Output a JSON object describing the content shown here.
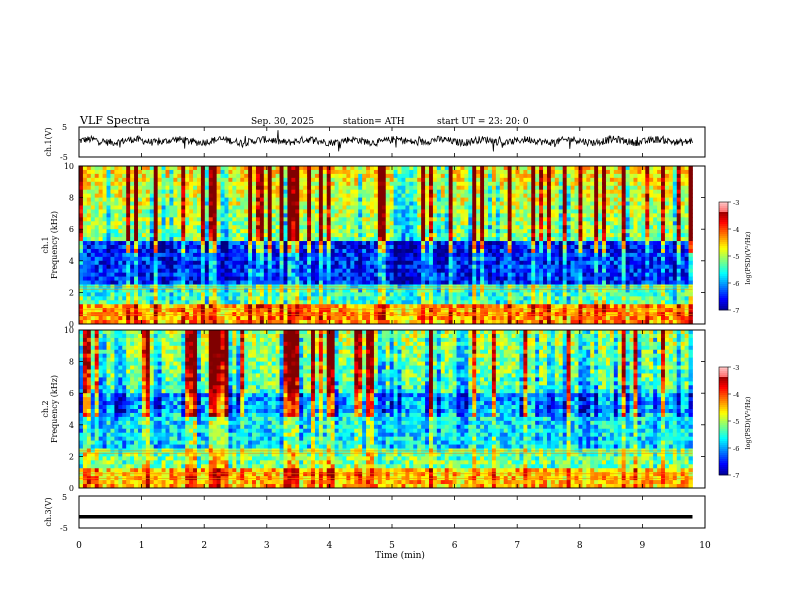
{
  "header": {
    "title": "VLF  Spectra",
    "date": "Sep. 30, 2025",
    "station": "station= ATH",
    "start": "start  UT  =    23: 20: 0"
  },
  "chart_data": [
    {
      "type": "line",
      "name": "ch1-waveform",
      "ylabel": "ch.1(V)",
      "ylim": [
        -5,
        5
      ],
      "yticks": [
        "5",
        "-5"
      ],
      "x_range_min": [
        0,
        9.8
      ],
      "description_note": "noisy waveform near 0 V"
    },
    {
      "type": "heatmap",
      "name": "ch1-spectrogram",
      "ylabel_channel": "ch.1",
      "ylabel": "Frequency  (kHz)",
      "ylim": [
        0,
        10
      ],
      "yticks": [
        "0",
        "2",
        "4",
        "6",
        "8",
        "10"
      ],
      "colorbar": {
        "label": "log(PSD)(V²/Hz)",
        "range": [
          -7,
          -3
        ],
        "ticks": [
          "-3",
          "-4",
          "-5",
          "-6",
          "-7"
        ]
      }
    },
    {
      "type": "heatmap",
      "name": "ch2-spectrogram",
      "ylabel_channel": "ch.2",
      "ylabel": "Frequency  (kHz)",
      "ylim": [
        0,
        10
      ],
      "yticks": [
        "0",
        "2",
        "4",
        "6",
        "8",
        "10"
      ],
      "colorbar": {
        "label": "log(PSD)(V²/Hz)",
        "range": [
          -7,
          -3
        ],
        "ticks": [
          "-3",
          "-4",
          "-5",
          "-6",
          "-7"
        ]
      }
    },
    {
      "type": "line",
      "name": "ch3-waveform",
      "ylabel": "ch.3(V)",
      "ylim": [
        -5,
        5
      ],
      "yticks": [
        "5",
        "-5"
      ],
      "value_level": -1.5
    }
  ],
  "xaxis": {
    "label": "Time  (min)",
    "range": [
      0,
      10
    ],
    "ticks": [
      "0",
      "1",
      "2",
      "3",
      "4",
      "5",
      "6",
      "7",
      "8",
      "9",
      "10"
    ]
  },
  "palette": {
    "jet": [
      "#000080",
      "#0000ff",
      "#0080ff",
      "#00ffff",
      "#00ff80",
      "#80ff00",
      "#ffff00",
      "#ff8000",
      "#ff0000",
      "#ffffff"
    ],
    "axis": "#000000"
  }
}
